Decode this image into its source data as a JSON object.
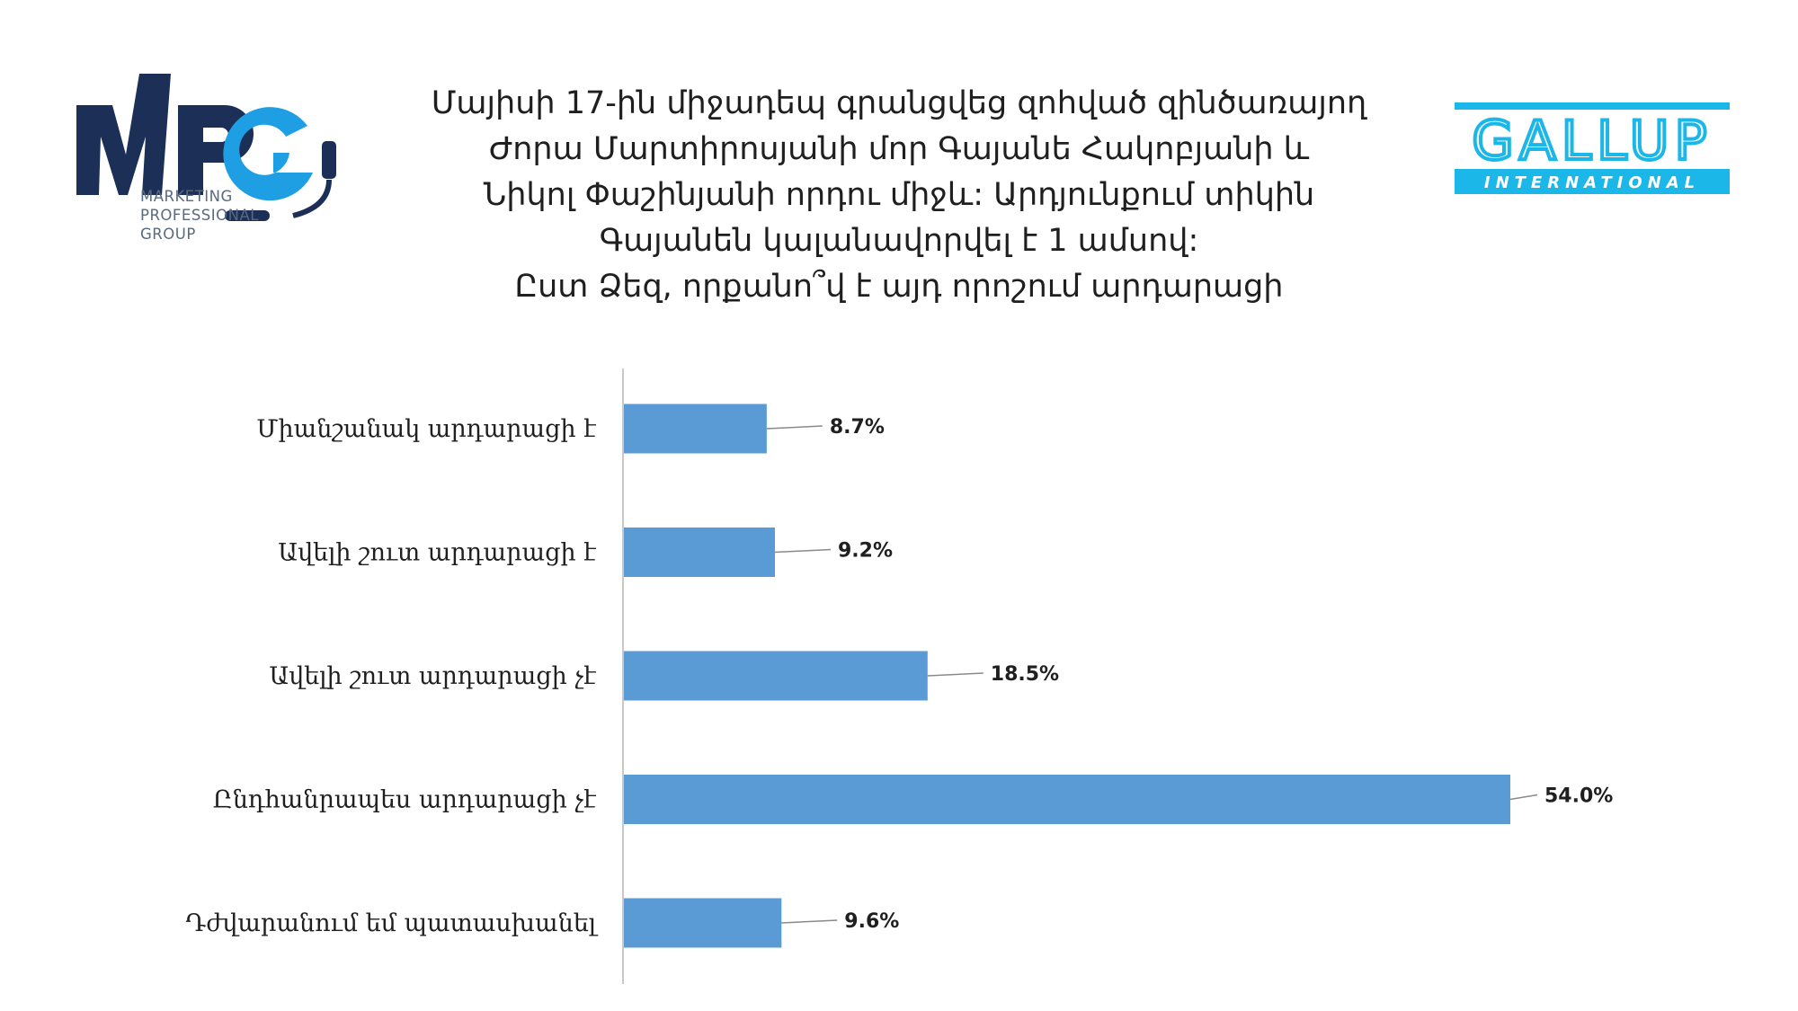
{
  "header": {
    "title_lines": [
      "Մայիսի 17-ին միջադեպ գրանցվեց զոհված զինծառայող",
      "Ժորա Մարտիրոսյանի մոր  Գայանե Հակոբյանի և",
      "Նիկոլ Փաշինյանի որդու միջև: Արդյունքում տիկին",
      "Գայանեն կալանավորվել է 1 ամսով:",
      "Ըստ Ձեզ, որքանո՞վ է այդ որոշում արդարացի"
    ]
  },
  "logos": {
    "mpg": {
      "letters": "MPG",
      "subtitle_lines": [
        "MARKETING",
        "PROFESSIONAL",
        "GROUP"
      ],
      "colors": {
        "dark": "#1b2f57",
        "accent": "#1e9fe3"
      }
    },
    "gallup": {
      "name": "GALLUP",
      "tagline": "INTERNATIONAL",
      "color": "#1bb7e8"
    }
  },
  "chart_data": {
    "type": "bar",
    "orientation": "horizontal",
    "categories": [
      "Միանշանակ արդարացի է",
      "Ավելի շուտ արդարացի է",
      "Ավելի շուտ արդարացի չէ",
      "Ընդհանրապես արդարացի չէ",
      "Դժվարանում եմ պատասխանել"
    ],
    "values": [
      8.7,
      9.2,
      18.5,
      54.0,
      9.6
    ],
    "value_labels": [
      "8.7%",
      "9.2%",
      "18.5%",
      "54.0%",
      "9.6%"
    ],
    "unit": "%",
    "bar_color": "#5b9bd5",
    "grid": false,
    "legend": "none"
  }
}
